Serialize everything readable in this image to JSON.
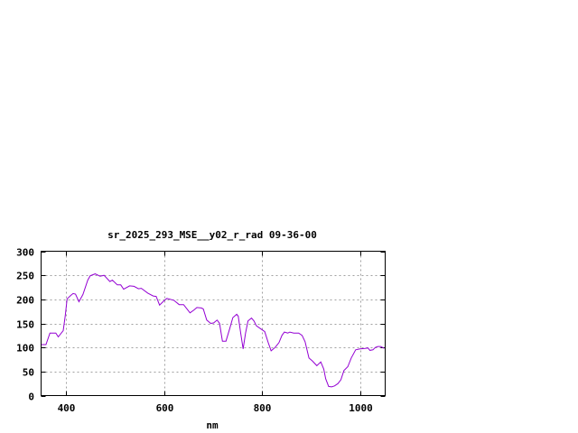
{
  "chart_data": {
    "type": "line",
    "title": "sr_2025_293_MSE__y02_r_rad 09-36-00",
    "xlabel": "nm",
    "ylabel": "",
    "xlim": [
      350,
      1050
    ],
    "ylim": [
      0,
      300
    ],
    "xticks": [
      400,
      600,
      800,
      1000
    ],
    "yticks": [
      0,
      50,
      100,
      150,
      200,
      250,
      300
    ],
    "grid": true,
    "line_color": "#9400d3",
    "series": [
      {
        "x": [
          350,
          360,
          368,
          380,
          385,
          395,
          399,
          403,
          410,
          415,
          420,
          427,
          435,
          445,
          450,
          460,
          470,
          478,
          490,
          495,
          505,
          512,
          518,
          530,
          539,
          548,
          554,
          567,
          578,
          584,
          591,
          600,
          606,
          620,
          631,
          640,
          653,
          661,
          667,
          676,
          680,
          687,
          695,
          701,
          708,
          713,
          719,
          726,
          734,
          740,
          748,
          751,
          756,
          761,
          766,
          771,
          778,
          783,
          788,
          795,
          805,
          812,
          818,
          826,
          834,
          840,
          845,
          852,
          856,
          864,
          874,
          881,
          887,
          895,
          902,
          911,
          919,
          925,
          929,
          935,
          941,
          947,
          954,
          960,
          966,
          974,
          981,
          990,
          999,
          1009,
          1015,
          1019,
          1025,
          1030,
          1035,
          1041,
          1048
        ],
        "y": [
          106,
          106,
          130,
          130,
          122,
          135,
          165,
          201,
          208,
          212,
          211,
          195,
          210,
          240,
          249,
          253,
          248,
          250,
          237,
          240,
          230,
          230,
          221,
          228,
          227,
          222,
          223,
          213,
          207,
          206,
          188,
          197,
          202,
          198,
          189,
          189,
          172,
          178,
          183,
          182,
          180,
          157,
          150,
          151,
          157,
          150,
          113,
          113,
          140,
          162,
          169,
          165,
          130,
          97,
          130,
          155,
          161,
          155,
          145,
          140,
          133,
          110,
          93,
          100,
          110,
          125,
          132,
          130,
          132,
          130,
          130,
          125,
          112,
          78,
          72,
          62,
          70,
          55,
          35,
          19,
          18,
          20,
          25,
          33,
          52,
          60,
          78,
          95,
          97,
          98,
          99,
          94,
          95,
          100,
          102,
          102,
          98
        ]
      }
    ]
  }
}
